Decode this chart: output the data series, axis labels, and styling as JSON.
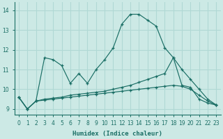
{
  "xlabel": "Humidex (Indice chaleur)",
  "xlim": [
    -0.5,
    23.5
  ],
  "ylim": [
    8.7,
    14.4
  ],
  "xticks": [
    0,
    1,
    2,
    3,
    4,
    5,
    6,
    7,
    8,
    9,
    10,
    11,
    12,
    13,
    14,
    15,
    16,
    17,
    18,
    19,
    20,
    21,
    22,
    23
  ],
  "yticks": [
    9,
    10,
    11,
    12,
    13,
    14
  ],
  "bg_color": "#cce9e5",
  "grid_color": "#b0d8d4",
  "line_color": "#1a6e65",
  "lines": [
    {
      "x": [
        0,
        1,
        2,
        3,
        4,
        5,
        6,
        7,
        8,
        9,
        10,
        11,
        12,
        13,
        14,
        15,
        16,
        17,
        18,
        19,
        20,
        21,
        22,
        23
      ],
      "y": [
        9.6,
        9.0,
        9.4,
        11.6,
        11.5,
        11.2,
        10.3,
        10.8,
        10.3,
        11.0,
        11.5,
        12.1,
        13.3,
        13.8,
        13.8,
        13.5,
        13.2,
        12.1,
        11.6,
        10.2,
        10.1,
        9.5,
        9.3,
        9.2
      ]
    },
    {
      "x": [
        0,
        1,
        2,
        3,
        4,
        5,
        6,
        7,
        8,
        9,
        10,
        11,
        12,
        13,
        14,
        15,
        16,
        17,
        18,
        19,
        20,
        21,
        22,
        23
      ],
      "y": [
        9.6,
        9.0,
        9.4,
        9.5,
        9.55,
        9.6,
        9.7,
        9.75,
        9.8,
        9.85,
        9.9,
        10.0,
        10.1,
        10.2,
        10.35,
        10.5,
        10.65,
        10.8,
        11.6,
        11.0,
        10.5,
        10.0,
        9.5,
        9.2
      ]
    },
    {
      "x": [
        0,
        1,
        2,
        3,
        4,
        5,
        6,
        7,
        8,
        9,
        10,
        11,
        12,
        13,
        14,
        15,
        16,
        17,
        18,
        19,
        20,
        21,
        22,
        23
      ],
      "y": [
        9.6,
        9.0,
        9.4,
        9.45,
        9.5,
        9.55,
        9.6,
        9.65,
        9.7,
        9.75,
        9.8,
        9.85,
        9.9,
        9.95,
        10.0,
        10.05,
        10.1,
        10.15,
        10.2,
        10.15,
        10.0,
        9.7,
        9.4,
        9.2
      ]
    }
  ]
}
